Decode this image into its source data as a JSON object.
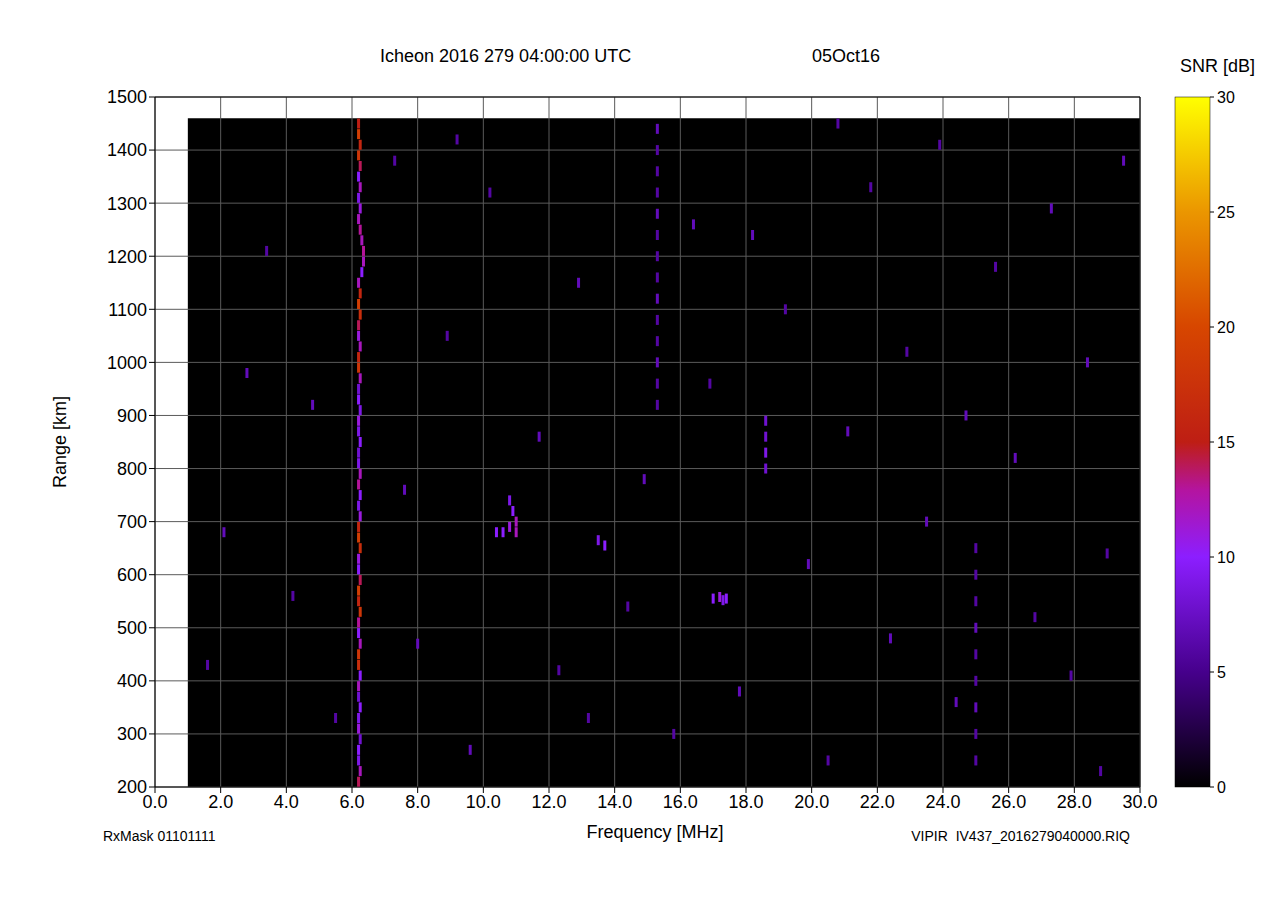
{
  "chart_data": {
    "type": "heatmap",
    "title": "Icheon 2016 279 04:00:00 UTC",
    "subtitle": "05Oct16",
    "x_label": "Frequency [MHz]",
    "y_label": "Range [km]",
    "annotations": [
      "RxMask 01101111",
      "VIPIR  IV437_2016279040000.RIQ"
    ],
    "xlim": [
      0,
      30
    ],
    "xticks": [
      {
        "value": 0,
        "label": "0.0"
      },
      {
        "value": 2,
        "label": "2.0"
      },
      {
        "value": 4,
        "label": "4.0"
      },
      {
        "value": 6,
        "label": "6.0"
      },
      {
        "value": 8,
        "label": "8.0"
      },
      {
        "value": 10,
        "label": "10.0"
      },
      {
        "value": 12,
        "label": "12.0"
      },
      {
        "value": 14,
        "label": "14.0"
      },
      {
        "value": 16,
        "label": "16.0"
      },
      {
        "value": 18,
        "label": "18.0"
      },
      {
        "value": 20,
        "label": "20.0"
      },
      {
        "value": 22,
        "label": "22.0"
      },
      {
        "value": 24,
        "label": "24.0"
      },
      {
        "value": 26,
        "label": "26.0"
      },
      {
        "value": 28,
        "label": "28.0"
      },
      {
        "value": 30,
        "label": "30.0"
      }
    ],
    "ylim": [
      200,
      1500
    ],
    "yticks": [
      200,
      300,
      400,
      500,
      600,
      700,
      800,
      900,
      1000,
      1100,
      1200,
      1300,
      1400,
      1500
    ],
    "grid": true,
    "swept": {
      "frequency": [
        1.0,
        30.0
      ],
      "range": [
        200,
        1460
      ]
    },
    "colorbar": {
      "label": "SNR [dB]",
      "range": [
        0,
        30
      ],
      "ticks": [
        0,
        5,
        10,
        15,
        20,
        25,
        30
      ]
    },
    "cells": [
      [
        6.2,
        210,
        14
      ],
      [
        6.25,
        230,
        12
      ],
      [
        6.2,
        250,
        9
      ],
      [
        6.2,
        270,
        10
      ],
      [
        6.25,
        290,
        8
      ],
      [
        6.2,
        310,
        11
      ],
      [
        6.2,
        330,
        9
      ],
      [
        6.25,
        350,
        10
      ],
      [
        6.2,
        370,
        8
      ],
      [
        6.2,
        390,
        12
      ],
      [
        6.25,
        410,
        10
      ],
      [
        6.2,
        430,
        17
      ],
      [
        6.2,
        450,
        18
      ],
      [
        6.25,
        470,
        12
      ],
      [
        6.2,
        490,
        10
      ],
      [
        6.2,
        510,
        13
      ],
      [
        6.25,
        530,
        18
      ],
      [
        6.2,
        550,
        16
      ],
      [
        6.2,
        570,
        19
      ],
      [
        6.25,
        590,
        14
      ],
      [
        6.2,
        610,
        10
      ],
      [
        6.2,
        630,
        11
      ],
      [
        6.25,
        650,
        17
      ],
      [
        6.2,
        670,
        19
      ],
      [
        6.2,
        690,
        16
      ],
      [
        6.25,
        710,
        11
      ],
      [
        6.2,
        730,
        9
      ],
      [
        6.25,
        750,
        10
      ],
      [
        6.2,
        770,
        13
      ],
      [
        6.25,
        790,
        12
      ],
      [
        6.2,
        810,
        9
      ],
      [
        6.2,
        830,
        8
      ],
      [
        6.25,
        850,
        10
      ],
      [
        6.2,
        870,
        9
      ],
      [
        6.2,
        890,
        11
      ],
      [
        6.25,
        910,
        9
      ],
      [
        6.2,
        930,
        10
      ],
      [
        6.2,
        950,
        8
      ],
      [
        6.25,
        970,
        12
      ],
      [
        6.2,
        990,
        18
      ],
      [
        6.2,
        1010,
        16
      ],
      [
        6.25,
        1030,
        12
      ],
      [
        6.2,
        1050,
        11
      ],
      [
        6.2,
        1070,
        14
      ],
      [
        6.25,
        1090,
        17
      ],
      [
        6.2,
        1110,
        19
      ],
      [
        6.25,
        1130,
        16
      ],
      [
        6.2,
        1150,
        12
      ],
      [
        6.3,
        1170,
        10
      ],
      [
        6.35,
        1190,
        12
      ],
      [
        6.35,
        1210,
        13
      ],
      [
        6.3,
        1230,
        12
      ],
      [
        6.25,
        1250,
        13
      ],
      [
        6.2,
        1270,
        12
      ],
      [
        6.25,
        1290,
        11
      ],
      [
        6.2,
        1310,
        9
      ],
      [
        6.25,
        1330,
        12
      ],
      [
        6.2,
        1350,
        10
      ],
      [
        6.25,
        1370,
        14
      ],
      [
        6.2,
        1390,
        18
      ],
      [
        6.25,
        1410,
        16
      ],
      [
        6.2,
        1430,
        19
      ],
      [
        6.2,
        1450,
        15
      ],
      [
        10.4,
        680,
        10
      ],
      [
        10.6,
        680,
        10
      ],
      [
        10.8,
        690,
        11
      ],
      [
        11.0,
        700,
        12
      ],
      [
        10.9,
        720,
        10
      ],
      [
        10.8,
        740,
        9
      ],
      [
        11.0,
        680,
        12
      ],
      [
        13.5,
        665,
        9
      ],
      [
        13.7,
        655,
        10
      ],
      [
        17.0,
        555,
        10
      ],
      [
        17.2,
        558,
        11
      ],
      [
        17.4,
        555,
        10
      ],
      [
        17.3,
        552,
        9
      ],
      [
        15.3,
        920,
        6
      ],
      [
        15.3,
        960,
        6
      ],
      [
        15.3,
        1000,
        7
      ],
      [
        15.3,
        1040,
        6
      ],
      [
        15.3,
        1080,
        6
      ],
      [
        15.3,
        1120,
        7
      ],
      [
        15.3,
        1160,
        6
      ],
      [
        15.3,
        1200,
        6
      ],
      [
        15.3,
        1240,
        6
      ],
      [
        15.3,
        1280,
        7
      ],
      [
        15.3,
        1320,
        6
      ],
      [
        15.3,
        1360,
        6
      ],
      [
        15.3,
        1400,
        6
      ],
      [
        15.3,
        1440,
        7
      ],
      [
        18.6,
        800,
        8
      ],
      [
        18.6,
        830,
        9
      ],
      [
        18.6,
        860,
        8
      ],
      [
        18.6,
        890,
        8
      ],
      [
        25.0,
        250,
        6
      ],
      [
        25.0,
        300,
        6
      ],
      [
        25.0,
        350,
        7
      ],
      [
        25.0,
        400,
        6
      ],
      [
        25.0,
        450,
        6
      ],
      [
        25.0,
        500,
        7
      ],
      [
        25.0,
        550,
        6
      ],
      [
        25.0,
        600,
        6
      ],
      [
        25.0,
        650,
        6
      ],
      [
        2.1,
        680,
        7
      ],
      [
        3.4,
        1210,
        6
      ],
      [
        4.8,
        920,
        7
      ],
      [
        5.5,
        330,
        6
      ],
      [
        7.3,
        1380,
        6
      ],
      [
        8.0,
        470,
        7
      ],
      [
        8.9,
        1050,
        6
      ],
      [
        9.6,
        270,
        7
      ],
      [
        10.2,
        1320,
        6
      ],
      [
        11.7,
        860,
        7
      ],
      [
        12.3,
        420,
        6
      ],
      [
        12.9,
        1150,
        7
      ],
      [
        14.4,
        540,
        6
      ],
      [
        14.9,
        780,
        7
      ],
      [
        15.8,
        300,
        6
      ],
      [
        16.4,
        1260,
        7
      ],
      [
        16.9,
        960,
        6
      ],
      [
        17.8,
        380,
        7
      ],
      [
        19.2,
        1100,
        6
      ],
      [
        19.9,
        620,
        7
      ],
      [
        20.5,
        250,
        6
      ],
      [
        21.1,
        870,
        7
      ],
      [
        21.8,
        1330,
        6
      ],
      [
        22.4,
        480,
        7
      ],
      [
        22.9,
        1020,
        6
      ],
      [
        23.5,
        700,
        7
      ],
      [
        23.9,
        1410,
        6
      ],
      [
        24.4,
        360,
        7
      ],
      [
        25.6,
        1180,
        6
      ],
      [
        26.2,
        820,
        7
      ],
      [
        26.8,
        520,
        6
      ],
      [
        27.3,
        1290,
        7
      ],
      [
        27.9,
        410,
        6
      ],
      [
        28.4,
        1000,
        7
      ],
      [
        29.0,
        640,
        6
      ],
      [
        29.5,
        1380,
        7
      ],
      [
        1.6,
        430,
        6
      ],
      [
        2.8,
        980,
        7
      ],
      [
        4.2,
        560,
        6
      ],
      [
        7.6,
        760,
        7
      ],
      [
        9.2,
        1420,
        6
      ],
      [
        13.2,
        330,
        6
      ],
      [
        18.2,
        1240,
        7
      ],
      [
        20.8,
        1450,
        6
      ],
      [
        24.7,
        900,
        7
      ],
      [
        28.8,
        230,
        6
      ]
    ]
  }
}
